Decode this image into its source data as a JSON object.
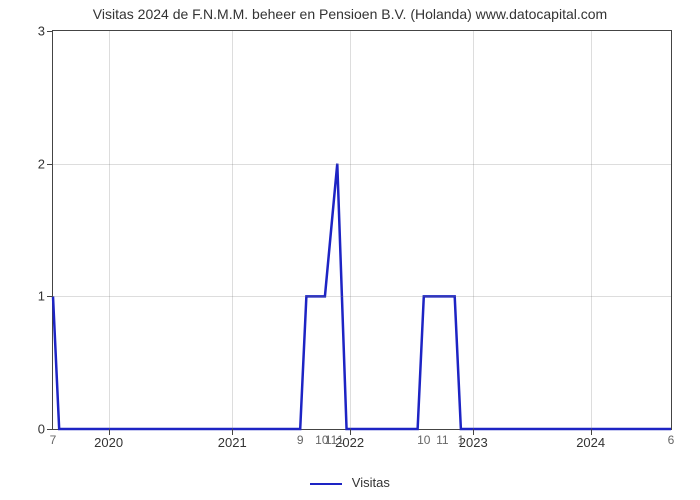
{
  "chart": {
    "type": "line",
    "title": "Visitas 2024 de F.N.M.M. beheer en Pensioen B.V. (Holanda) www.datocapital.com",
    "title_fontsize": 14,
    "background_color": "#ffffff",
    "grid_color": "rgba(120,120,120,0.25)",
    "axis_color": "#444444",
    "label_fontsize": 13,
    "ylim": [
      0,
      3
    ],
    "yticks": [
      0,
      1,
      2,
      3
    ],
    "xlim_pct": [
      0,
      100
    ],
    "xticks": [
      {
        "label": "2020",
        "pct": 9
      },
      {
        "label": "2021",
        "pct": 29
      },
      {
        "label": "2022",
        "pct": 48
      },
      {
        "label": "2023",
        "pct": 68
      },
      {
        "label": "2024",
        "pct": 87
      }
    ],
    "point_labels": [
      {
        "text": "7",
        "pct": 0
      },
      {
        "text": "9",
        "pct": 40
      },
      {
        "text": "10",
        "pct": 43.5
      },
      {
        "text": "11",
        "pct": 45
      },
      {
        "text": "1",
        "pct": 46.5
      },
      {
        "text": "10",
        "pct": 60
      },
      {
        "text": "11",
        "pct": 63
      },
      {
        "text": "1",
        "pct": 66
      },
      {
        "text": "6",
        "pct": 100
      }
    ],
    "series": {
      "name": "Visitas",
      "color": "#1d24c4",
      "line_width": 2.5,
      "points": [
        {
          "x": 0,
          "y": 1
        },
        {
          "x": 1,
          "y": 0
        },
        {
          "x": 40,
          "y": 0
        },
        {
          "x": 41,
          "y": 1
        },
        {
          "x": 44,
          "y": 1
        },
        {
          "x": 46,
          "y": 2
        },
        {
          "x": 47.5,
          "y": 0
        },
        {
          "x": 59,
          "y": 0
        },
        {
          "x": 60,
          "y": 1
        },
        {
          "x": 65,
          "y": 1
        },
        {
          "x": 66,
          "y": 0
        },
        {
          "x": 100,
          "y": 0
        }
      ]
    },
    "legend_label": "Visitas"
  }
}
